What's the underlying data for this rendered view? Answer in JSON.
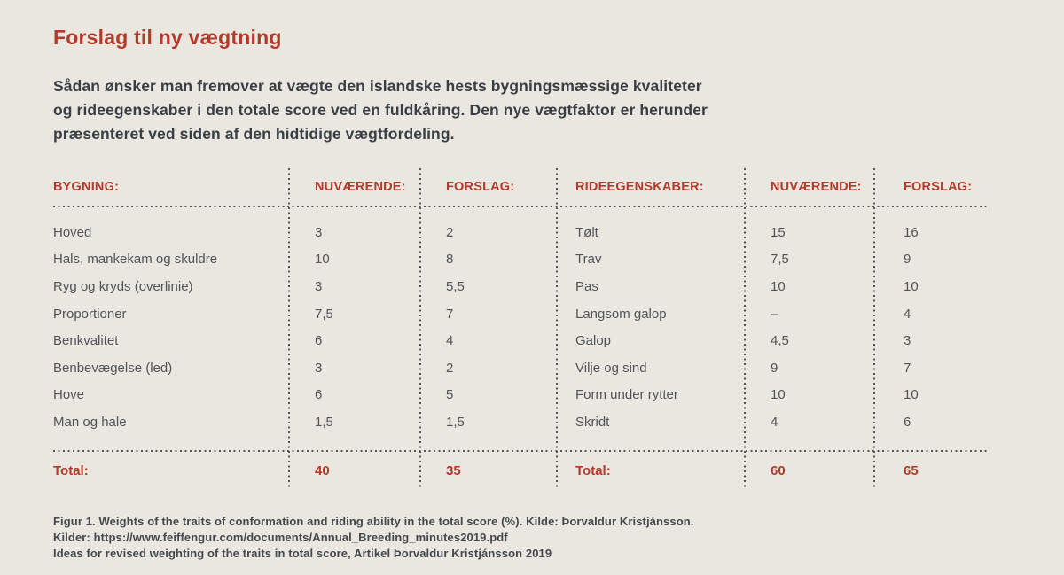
{
  "colors": {
    "background": "#e9e7e0",
    "accent_red": "#b23a2b",
    "intro_text": "#3a3e45",
    "table_text": "#515458",
    "caption_text": "#45484d",
    "dotted_line": "#575757"
  },
  "page": {
    "title": "Forslag til ny vægtning",
    "intro_lines": [
      "Sådan ønsker man fremover at vægte den islandske hests bygningsmæssige kvaliteter",
      "og rideegenskaber i den totale score ved en fuldkåring. Den nye vægtfaktor er herunder",
      "præsenteret ved siden af den hidtidige vægtfordeling."
    ],
    "caption_lines": [
      "Figur 1. Weights of the traits of conformation and riding ability in the total score (%). Kilde: Þorvaldur Kristjánsson.",
      "Kilder: https://www.feiffengur.com/documents/Annual_Breeding_minutes2019.pdf",
      "Ideas for revised weighting of the traits in total score, Artikel Þorvaldur Kristjánsson 2019"
    ]
  },
  "table": {
    "headers": {
      "bygning": "BYGNING:",
      "nuvaerende_1": "NUVÆRENDE:",
      "forslag_1": "FORSLAG:",
      "rideegenskaber": "RIDEEGENSKABER:",
      "nuvaerende_2": "NUVÆRENDE:",
      "forslag_2": "FORSLAG:"
    },
    "bygning_rows": [
      {
        "label": "Hoved",
        "nuvaerende": "3",
        "forslag": "2"
      },
      {
        "label": "Hals, mankekam og skuldre",
        "nuvaerende": "10",
        "forslag": "8"
      },
      {
        "label": "Ryg og kryds (overlinie)",
        "nuvaerende": "3",
        "forslag": "5,5"
      },
      {
        "label": "Proportioner",
        "nuvaerende": "7,5",
        "forslag": "7"
      },
      {
        "label": "Benkvalitet",
        "nuvaerende": "6",
        "forslag": "4"
      },
      {
        "label": "Benbevægelse (led)",
        "nuvaerende": "3",
        "forslag": "2"
      },
      {
        "label": "Hove",
        "nuvaerende": "6",
        "forslag": "5"
      },
      {
        "label": "Man og hale",
        "nuvaerende": "1,5",
        "forslag": "1,5"
      }
    ],
    "ride_rows": [
      {
        "label": "Tølt",
        "nuvaerende": "15",
        "forslag": "16"
      },
      {
        "label": "Trav",
        "nuvaerende": "7,5",
        "forslag": "9"
      },
      {
        "label": "Pas",
        "nuvaerende": "10",
        "forslag": "10"
      },
      {
        "label": "Langsom galop",
        "nuvaerende": "–",
        "forslag": "4"
      },
      {
        "label": "Galop",
        "nuvaerende": "4,5",
        "forslag": "3"
      },
      {
        "label": "Vilje og sind",
        "nuvaerende": "9",
        "forslag": "7"
      },
      {
        "label": "Form under rytter",
        "nuvaerende": "10",
        "forslag": "10"
      },
      {
        "label": "Skridt",
        "nuvaerende": "4",
        "forslag": "6"
      }
    ],
    "total": {
      "label_1": "Total:",
      "bygning_nuvaerende": "40",
      "bygning_forslag": "35",
      "label_2": "Total:",
      "ride_nuvaerende": "60",
      "ride_forslag": "65"
    }
  }
}
